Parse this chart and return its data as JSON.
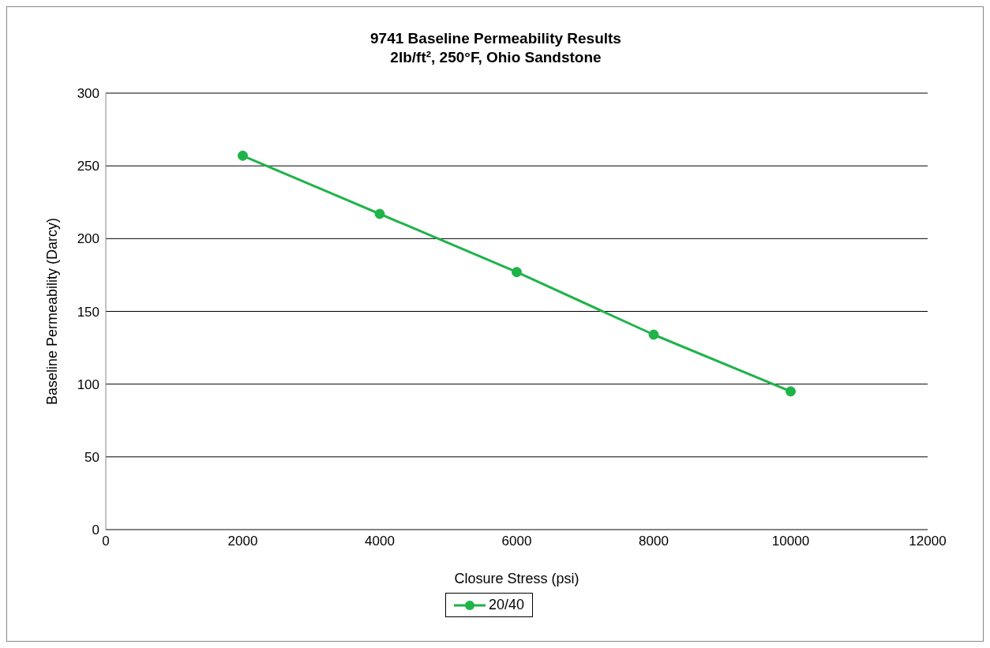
{
  "chart_data": {
    "type": "line",
    "title": "9741 Baseline Permeability Results",
    "subtitle": "2lb/ft², 250°F, Ohio Sandstone",
    "xlabel": "Closure Stress (psi)",
    "ylabel": "Baseline Permeability (Darcy)",
    "x": [
      2000,
      4000,
      6000,
      8000,
      10000
    ],
    "series": [
      {
        "name": "20/40",
        "color": "#1fb34a",
        "values": [
          257,
          217,
          177,
          134,
          95
        ]
      }
    ],
    "xlim": [
      0,
      12000
    ],
    "xticks": [
      0,
      2000,
      4000,
      6000,
      8000,
      10000,
      12000
    ],
    "ylim": [
      0,
      300
    ],
    "yticks": [
      0,
      50,
      100,
      150,
      200,
      250,
      300
    ],
    "grid": "y",
    "legend": "bottom",
    "marker": "circle",
    "line_style": "solid"
  }
}
